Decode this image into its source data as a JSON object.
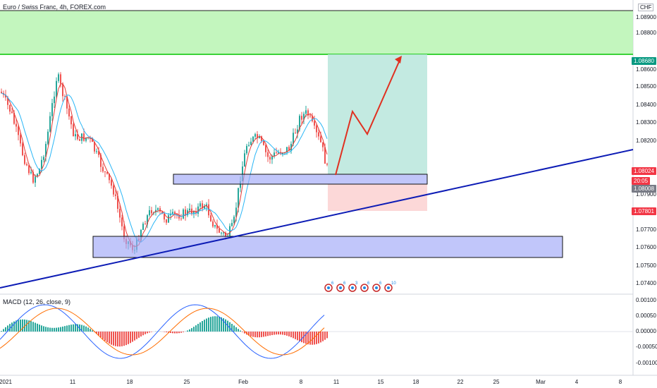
{
  "header": {
    "title": "Euro / Swiss Franc, 4h, FOREX.com",
    "currency": "CHF"
  },
  "price_axis": {
    "ticks": [
      "1.08900",
      "1.08800",
      "1.08600",
      "1.08500",
      "1.08400",
      "1.08300",
      "1.08200",
      "1.07900",
      "1.07700",
      "1.07600",
      "1.07500",
      "1.07400"
    ]
  },
  "price_tags": [
    {
      "label": "1.08680",
      "bg": "#089981"
    },
    {
      "label": "1.08024",
      "bg": "#f23645"
    },
    {
      "label": "20:05",
      "bg": "#f23645"
    },
    {
      "label": "1.08008",
      "bg": "#787b86"
    },
    {
      "label": "1.07801",
      "bg": "#f23645"
    }
  ],
  "time_axis": {
    "ticks": [
      "2021",
      "11",
      "18",
      "25",
      "Feb",
      "8",
      "11",
      "15",
      "18",
      "22",
      "25",
      "Mar",
      "4",
      "8"
    ]
  },
  "macd": {
    "title": "MACD (12, 26, close, 9)",
    "ticks": [
      "0.00100",
      "0.00050",
      "0.00000",
      "-0.00050",
      "-0.00100"
    ]
  },
  "events": {
    "counts": [
      "6",
      "6",
      "3",
      "6",
      "6",
      "10"
    ]
  },
  "colors": {
    "up": "#26a69a",
    "down": "#ef5350",
    "zone": "#9fa8f7",
    "trend": "#0c1bb5",
    "target": "#b9f5b3",
    "arrow": "#e03020"
  }
}
